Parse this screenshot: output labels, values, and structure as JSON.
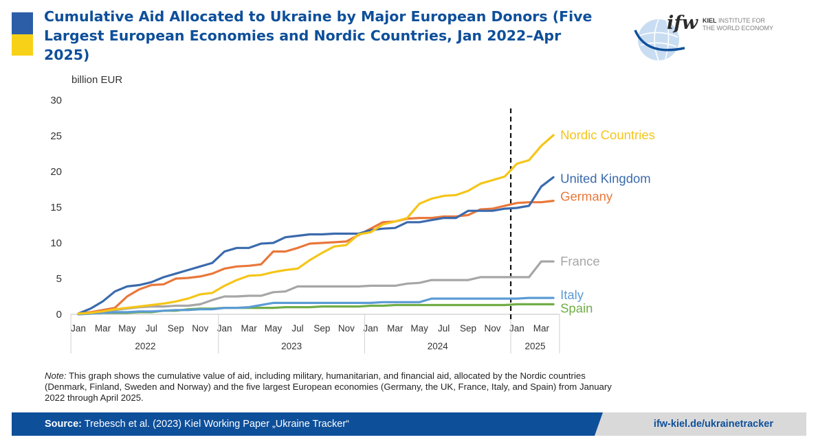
{
  "header": {
    "title": "Cumulative Aid Allocated to Ukraine by Major European Donors (Five Largest European Economies and Nordic Countries, Jan 2022–Apr 2025)",
    "flag_colors": [
      "#2c5ea8",
      "#f7d117"
    ]
  },
  "logo": {
    "letters": "ifw",
    "line1": "KIEL INSTITUTE FOR",
    "line2": "THE WORLD ECONOMY",
    "line1_bold": "KIEL",
    "line1_rest": " INSTITUTE FOR"
  },
  "chart_data": {
    "type": "line",
    "ylabel": "billion EUR",
    "ylim": [
      0,
      30
    ],
    "yticks": [
      0,
      5,
      10,
      15,
      20,
      25,
      30
    ],
    "grid": false,
    "x": [
      "2022-01",
      "2022-02",
      "2022-03",
      "2022-04",
      "2022-05",
      "2022-06",
      "2022-07",
      "2022-08",
      "2022-09",
      "2022-10",
      "2022-11",
      "2022-12",
      "2023-01",
      "2023-02",
      "2023-03",
      "2023-04",
      "2023-05",
      "2023-06",
      "2023-07",
      "2023-08",
      "2023-09",
      "2023-10",
      "2023-11",
      "2023-12",
      "2024-01",
      "2024-02",
      "2024-03",
      "2024-04",
      "2024-05",
      "2024-06",
      "2024-07",
      "2024-08",
      "2024-09",
      "2024-10",
      "2024-11",
      "2024-12",
      "2025-01",
      "2025-02",
      "2025-03",
      "2025-04"
    ],
    "tick_labels": [
      {
        "index": 0,
        "label": "Jan"
      },
      {
        "index": 2,
        "label": "Mar"
      },
      {
        "index": 4,
        "label": "May"
      },
      {
        "index": 6,
        "label": "Jul"
      },
      {
        "index": 8,
        "label": "Sep"
      },
      {
        "index": 10,
        "label": "Nov"
      },
      {
        "index": 12,
        "label": "Jan"
      },
      {
        "index": 14,
        "label": "Mar"
      },
      {
        "index": 16,
        "label": "May"
      },
      {
        "index": 18,
        "label": "Jul"
      },
      {
        "index": 20,
        "label": "Sep"
      },
      {
        "index": 22,
        "label": "Nov"
      },
      {
        "index": 24,
        "label": "Jan"
      },
      {
        "index": 26,
        "label": "Mar"
      },
      {
        "index": 28,
        "label": "May"
      },
      {
        "index": 30,
        "label": "Jul"
      },
      {
        "index": 32,
        "label": "Sep"
      },
      {
        "index": 34,
        "label": "Nov"
      },
      {
        "index": 36,
        "label": "Jan"
      },
      {
        "index": 38,
        "label": "Mar"
      }
    ],
    "year_groups": [
      {
        "label": "2022",
        "start": 0,
        "end": 11
      },
      {
        "label": "2023",
        "start": 12,
        "end": 23
      },
      {
        "label": "2024",
        "start": 24,
        "end": 35
      },
      {
        "label": "2025",
        "start": 36,
        "end": 39
      }
    ],
    "divider_after": "2024-12",
    "series": [
      {
        "name": "Nordic Countries",
        "color": "#f5c518",
        "values": [
          0.1,
          0.2,
          0.4,
          0.7,
          0.9,
          1.1,
          1.3,
          1.5,
          1.8,
          2.2,
          2.8,
          3.0,
          4.0,
          4.8,
          5.4,
          5.5,
          5.9,
          6.2,
          6.4,
          7.6,
          8.6,
          9.5,
          9.7,
          11.2,
          11.5,
          12.6,
          13.0,
          13.5,
          15.5,
          16.2,
          16.6,
          16.7,
          17.3,
          18.3,
          18.8,
          19.3,
          21.1,
          21.6,
          23.6,
          25.1
        ]
      },
      {
        "name": "United Kingdom",
        "color": "#3a6aac",
        "values": [
          0.1,
          0.8,
          1.8,
          3.2,
          3.9,
          4.1,
          4.5,
          5.2,
          5.7,
          6.2,
          6.7,
          7.2,
          8.8,
          9.3,
          9.3,
          9.9,
          10.0,
          10.8,
          11.0,
          11.2,
          11.2,
          11.3,
          11.3,
          11.3,
          11.8,
          12.0,
          12.1,
          12.9,
          12.9,
          13.2,
          13.5,
          13.5,
          14.5,
          14.5,
          14.5,
          14.8,
          14.9,
          15.2,
          17.9,
          19.2
        ]
      },
      {
        "name": "Germany",
        "color": "#e9773a",
        "values": [
          0.1,
          0.3,
          0.6,
          0.9,
          2.5,
          3.5,
          4.1,
          4.2,
          5.0,
          5.1,
          5.3,
          5.7,
          6.4,
          6.7,
          6.8,
          7.0,
          8.8,
          8.8,
          9.3,
          9.9,
          10.0,
          10.1,
          10.2,
          11.1,
          12.0,
          12.9,
          13.0,
          13.4,
          13.5,
          13.5,
          13.7,
          13.7,
          13.9,
          14.7,
          14.8,
          15.2,
          15.6,
          15.7,
          15.7,
          15.9
        ]
      },
      {
        "name": "France",
        "color": "#a6a6a6",
        "values": [
          0.1,
          0.2,
          0.5,
          0.6,
          0.8,
          1.0,
          1.1,
          1.1,
          1.2,
          1.2,
          1.4,
          2.0,
          2.5,
          2.5,
          2.6,
          2.6,
          3.1,
          3.2,
          3.9,
          3.9,
          3.9,
          3.9,
          3.9,
          3.9,
          4.0,
          4.0,
          4.0,
          4.3,
          4.4,
          4.8,
          4.8,
          4.8,
          4.8,
          5.2,
          5.2,
          5.2,
          5.2,
          5.2,
          7.4,
          7.4
        ]
      },
      {
        "name": "Italy",
        "color": "#5b9bd5",
        "values": [
          0.0,
          0.1,
          0.2,
          0.3,
          0.3,
          0.4,
          0.4,
          0.5,
          0.6,
          0.6,
          0.7,
          0.7,
          0.9,
          0.9,
          1.0,
          1.3,
          1.6,
          1.6,
          1.6,
          1.6,
          1.6,
          1.6,
          1.6,
          1.6,
          1.6,
          1.7,
          1.7,
          1.7,
          1.7,
          2.2,
          2.2,
          2.2,
          2.2,
          2.2,
          2.2,
          2.2,
          2.2,
          2.3,
          2.3,
          2.3
        ]
      },
      {
        "name": "Spain",
        "color": "#70ad47",
        "values": [
          0.0,
          0.1,
          0.2,
          0.2,
          0.2,
          0.3,
          0.3,
          0.5,
          0.5,
          0.7,
          0.8,
          0.8,
          0.9,
          0.9,
          0.9,
          0.9,
          0.9,
          1.0,
          1.0,
          1.0,
          1.1,
          1.1,
          1.1,
          1.1,
          1.2,
          1.2,
          1.3,
          1.3,
          1.3,
          1.3,
          1.3,
          1.3,
          1.3,
          1.3,
          1.3,
          1.3,
          1.4,
          1.4,
          1.4,
          1.4
        ]
      }
    ]
  },
  "note": {
    "label": "Note:",
    "text": " This graph shows the cumulative value of aid, including military, humanitarian, and financial aid, allocated by the Nordic countries (Denmark, Finland, Sweden and Norway) and the five largest European economies (Germany, the UK, France, Italy, and Spain) from January 2022 through April 2025."
  },
  "footer": {
    "source_label": "Source:",
    "source_text": " Trebesch et al. (2023) Kiel Working Paper „Ukraine Tracker“",
    "url": "ifw-kiel.de/ukrainetracker"
  }
}
